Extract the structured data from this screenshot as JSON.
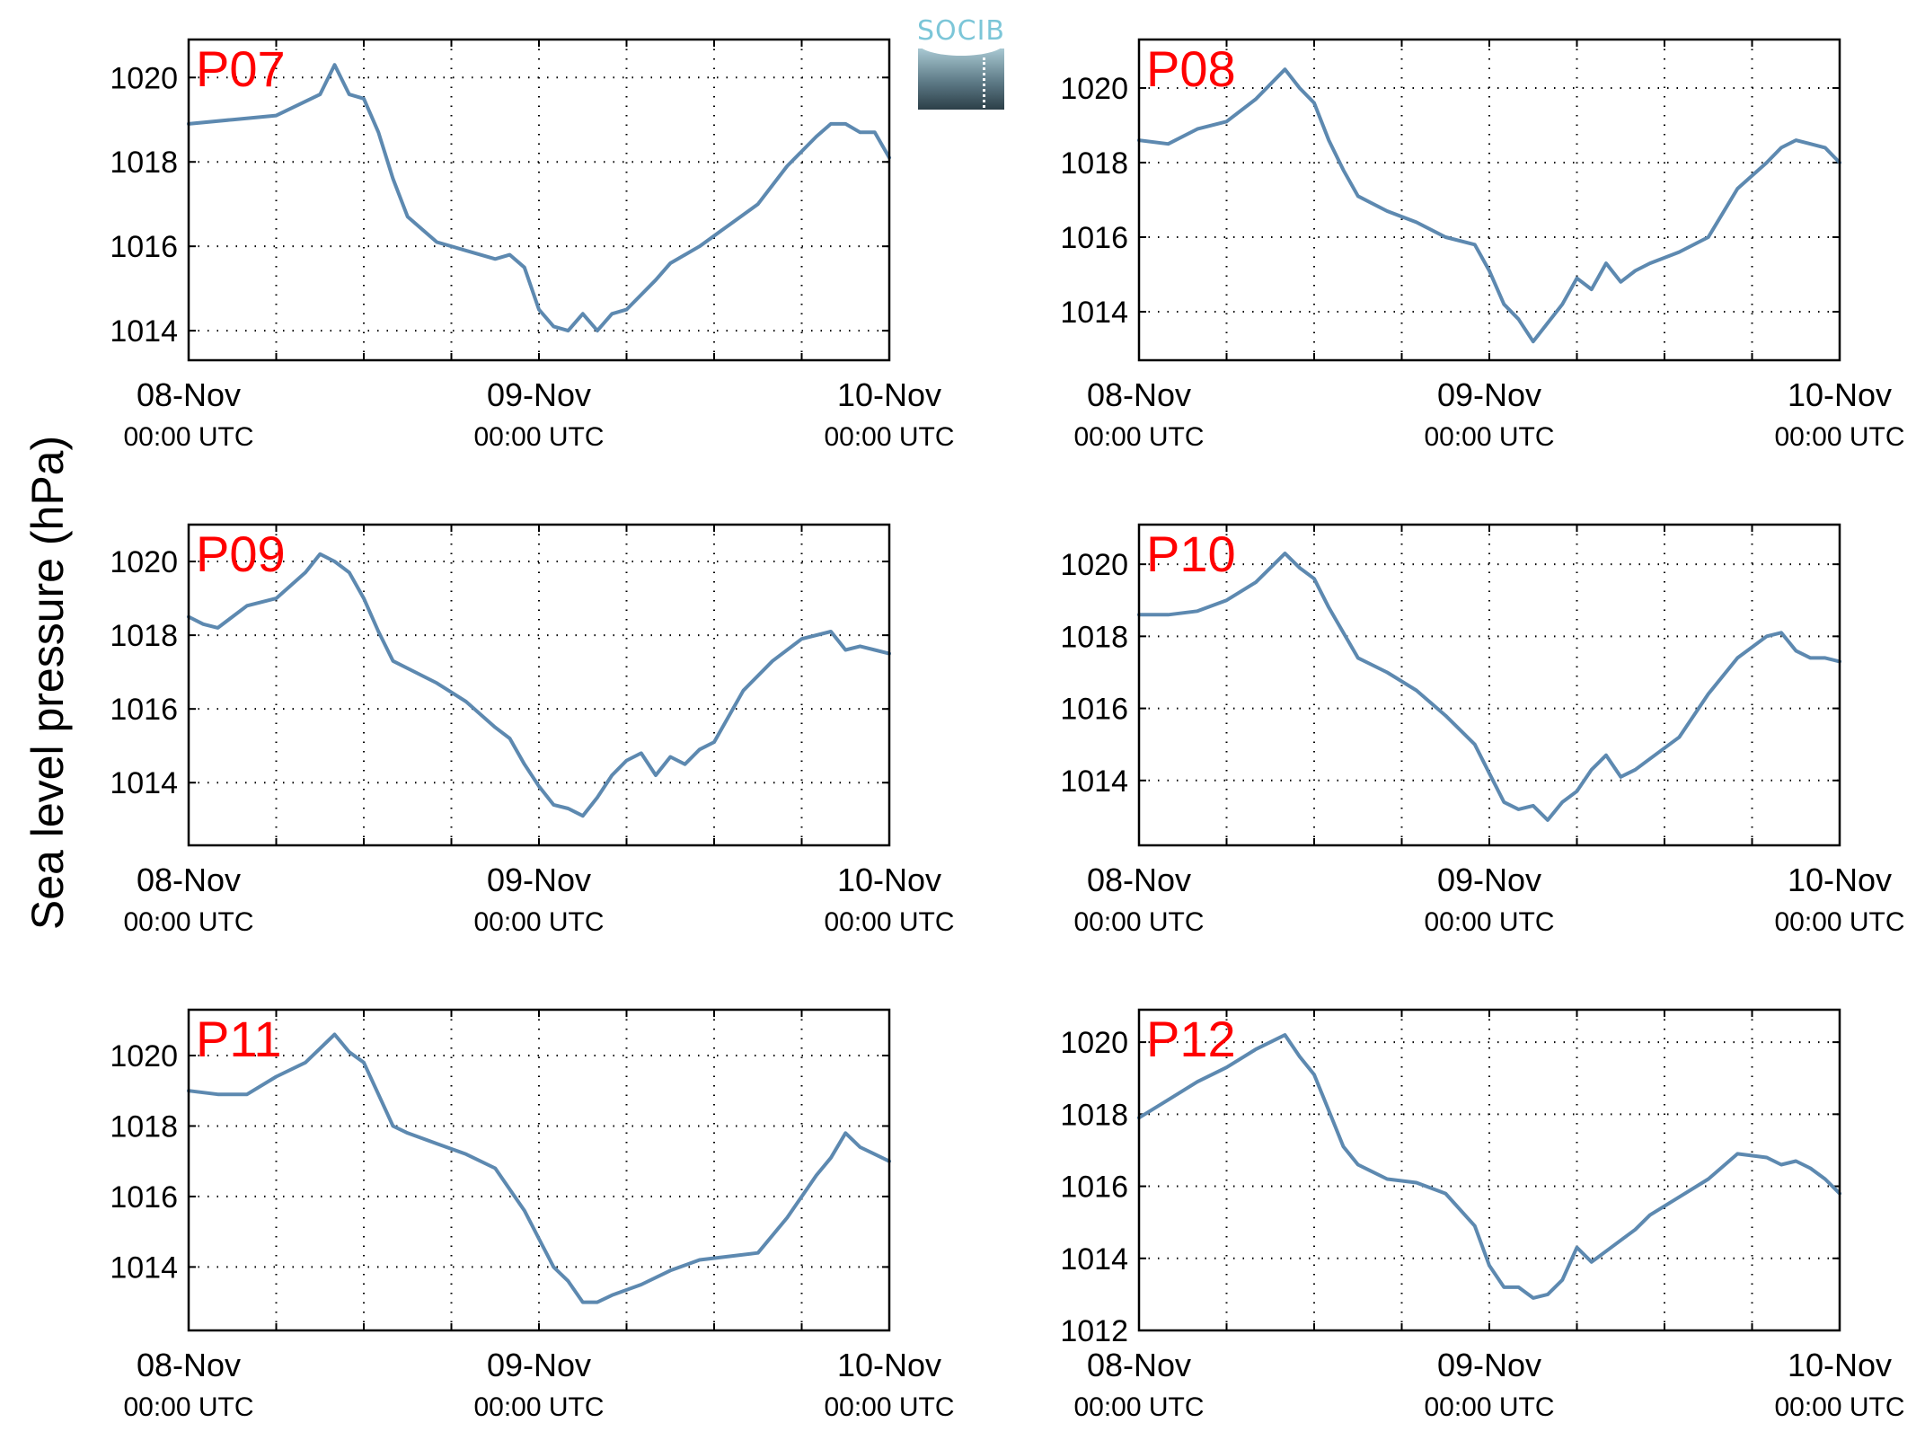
{
  "figure": {
    "ylabel": "Sea level pressure (hPa)",
    "logo_text": "SOCIB"
  },
  "colors": {
    "line": "#5d89b0",
    "panel_label": "#ff0000",
    "axis": "#000000",
    "grid": "#000000"
  },
  "chart_data": [
    {
      "type": "line",
      "title": "P07",
      "xlabel": "",
      "ylabel": "Sea level pressure (hPa)",
      "x_ticks": [
        {
          "date": "08-Nov",
          "time": "00:00 UTC"
        },
        {
          "date": "09-Nov",
          "time": "00:00 UTC"
        },
        {
          "date": "10-Nov",
          "time": "00:00 UTC"
        }
      ],
      "xlim": [
        "08-Nov 00:00",
        "10-Nov 00:00"
      ],
      "ylim": [
        1013.3,
        1020.9
      ],
      "y_ticks": [
        1014,
        1016,
        1018,
        1020
      ],
      "grid": true,
      "series": [
        {
          "x": [
            "08-Nov 00:00",
            "08-Nov 03:00",
            "08-Nov 06:00",
            "08-Nov 09:00",
            "08-Nov 10:00",
            "08-Nov 11:00",
            "08-Nov 12:00",
            "08-Nov 13:00",
            "08-Nov 14:00",
            "08-Nov 15:00",
            "08-Nov 17:00",
            "08-Nov 19:00",
            "08-Nov 21:00",
            "08-Nov 22:00",
            "08-Nov 23:00",
            "09-Nov 00:00",
            "09-Nov 01:00",
            "09-Nov 02:00",
            "09-Nov 03:00",
            "09-Nov 04:00",
            "09-Nov 05:00",
            "09-Nov 06:00",
            "09-Nov 08:00",
            "09-Nov 09:00",
            "09-Nov 10:00",
            "09-Nov 11:00",
            "09-Nov 13:00",
            "09-Nov 15:00",
            "09-Nov 17:00",
            "09-Nov 19:00",
            "09-Nov 20:00",
            "09-Nov 21:00",
            "09-Nov 22:00",
            "09-Nov 23:00",
            "10-Nov 00:00"
          ],
          "y": [
            1018.9,
            1019.0,
            1019.1,
            1019.6,
            1020.3,
            1019.6,
            1019.5,
            1018.7,
            1017.6,
            1016.7,
            1016.1,
            1015.9,
            1015.7,
            1015.8,
            1015.5,
            1014.5,
            1014.1,
            1014.0,
            1014.4,
            1014.0,
            1014.4,
            1014.5,
            1015.2,
            1015.6,
            1015.8,
            1016.0,
            1016.5,
            1017.0,
            1017.9,
            1018.6,
            1018.9,
            1018.9,
            1018.7,
            1018.7,
            1018.1
          ]
        }
      ]
    },
    {
      "type": "line",
      "title": "P08",
      "xlabel": "",
      "ylabel": "Sea level pressure (hPa)",
      "x_ticks": [
        {
          "date": "08-Nov",
          "time": "00:00 UTC"
        },
        {
          "date": "09-Nov",
          "time": "00:00 UTC"
        },
        {
          "date": "10-Nov",
          "time": "00:00 UTC"
        }
      ],
      "xlim": [
        "08-Nov 00:00",
        "10-Nov 00:00"
      ],
      "ylim": [
        1012.7,
        1021.3
      ],
      "y_ticks": [
        1014,
        1016,
        1018,
        1020
      ],
      "grid": true,
      "series": [
        {
          "x": [
            "08-Nov 00:00",
            "08-Nov 02:00",
            "08-Nov 04:00",
            "08-Nov 06:00",
            "08-Nov 08:00",
            "08-Nov 10:00",
            "08-Nov 11:00",
            "08-Nov 12:00",
            "08-Nov 13:00",
            "08-Nov 14:00",
            "08-Nov 15:00",
            "08-Nov 17:00",
            "08-Nov 19:00",
            "08-Nov 21:00",
            "08-Nov 23:00",
            "09-Nov 00:00",
            "09-Nov 01:00",
            "09-Nov 02:00",
            "09-Nov 03:00",
            "09-Nov 04:00",
            "09-Nov 05:00",
            "09-Nov 06:00",
            "09-Nov 07:00",
            "09-Nov 08:00",
            "09-Nov 09:00",
            "09-Nov 10:00",
            "09-Nov 11:00",
            "09-Nov 13:00",
            "09-Nov 15:00",
            "09-Nov 17:00",
            "09-Nov 19:00",
            "09-Nov 20:00",
            "09-Nov 21:00",
            "09-Nov 22:00",
            "09-Nov 23:00",
            "10-Nov 00:00"
          ],
          "y": [
            1018.6,
            1018.5,
            1018.9,
            1019.1,
            1019.7,
            1020.5,
            1020.0,
            1019.6,
            1018.6,
            1017.8,
            1017.1,
            1016.7,
            1016.4,
            1016.0,
            1015.8,
            1015.1,
            1014.2,
            1013.8,
            1013.2,
            1013.7,
            1014.2,
            1014.9,
            1014.6,
            1015.3,
            1014.8,
            1015.1,
            1015.3,
            1015.6,
            1016.0,
            1017.3,
            1018.0,
            1018.4,
            1018.6,
            1018.5,
            1018.4,
            1018.0
          ]
        }
      ]
    },
    {
      "type": "line",
      "title": "P09",
      "xlabel": "",
      "ylabel": "Sea level pressure (hPa)",
      "x_ticks": [
        {
          "date": "08-Nov",
          "time": "00:00 UTC"
        },
        {
          "date": "09-Nov",
          "time": "00:00 UTC"
        },
        {
          "date": "10-Nov",
          "time": "00:00 UTC"
        }
      ],
      "xlim": [
        "08-Nov 00:00",
        "10-Nov 00:00"
      ],
      "ylim": [
        1012.3,
        1021.0
      ],
      "y_ticks": [
        1014,
        1016,
        1018,
        1020
      ],
      "grid": true,
      "series": [
        {
          "x": [
            "08-Nov 00:00",
            "08-Nov 01:00",
            "08-Nov 02:00",
            "08-Nov 04:00",
            "08-Nov 06:00",
            "08-Nov 08:00",
            "08-Nov 09:00",
            "08-Nov 10:00",
            "08-Nov 11:00",
            "08-Nov 12:00",
            "08-Nov 13:00",
            "08-Nov 14:00",
            "08-Nov 15:00",
            "08-Nov 17:00",
            "08-Nov 19:00",
            "08-Nov 21:00",
            "08-Nov 22:00",
            "08-Nov 23:00",
            "09-Nov 00:00",
            "09-Nov 01:00",
            "09-Nov 02:00",
            "09-Nov 03:00",
            "09-Nov 04:00",
            "09-Nov 05:00",
            "09-Nov 06:00",
            "09-Nov 07:00",
            "09-Nov 08:00",
            "09-Nov 09:00",
            "09-Nov 10:00",
            "09-Nov 11:00",
            "09-Nov 12:00",
            "09-Nov 14:00",
            "09-Nov 16:00",
            "09-Nov 18:00",
            "09-Nov 20:00",
            "09-Nov 21:00",
            "09-Nov 22:00",
            "09-Nov 23:00",
            "10-Nov 00:00"
          ],
          "y": [
            1018.5,
            1018.3,
            1018.2,
            1018.8,
            1019.0,
            1019.7,
            1020.2,
            1020.0,
            1019.7,
            1019.0,
            1018.1,
            1017.3,
            1017.1,
            1016.7,
            1016.2,
            1015.5,
            1015.2,
            1014.5,
            1013.9,
            1013.4,
            1013.3,
            1013.1,
            1013.6,
            1014.2,
            1014.6,
            1014.8,
            1014.2,
            1014.7,
            1014.5,
            1014.9,
            1015.1,
            1016.5,
            1017.3,
            1017.9,
            1018.1,
            1017.6,
            1017.7,
            1017.6,
            1017.5
          ]
        }
      ]
    },
    {
      "type": "line",
      "title": "P10",
      "xlabel": "",
      "ylabel": "Sea level pressure (hPa)",
      "x_ticks": [
        {
          "date": "08-Nov",
          "time": "00:00 UTC"
        },
        {
          "date": "09-Nov",
          "time": "00:00 UTC"
        },
        {
          "date": "10-Nov",
          "time": "00:00 UTC"
        }
      ],
      "xlim": [
        "08-Nov 00:00",
        "10-Nov 00:00"
      ],
      "ylim": [
        1012.2,
        1021.1
      ],
      "y_ticks": [
        1014,
        1016,
        1018,
        1020
      ],
      "grid": true,
      "series": [
        {
          "x": [
            "08-Nov 00:00",
            "08-Nov 02:00",
            "08-Nov 04:00",
            "08-Nov 06:00",
            "08-Nov 08:00",
            "08-Nov 10:00",
            "08-Nov 11:00",
            "08-Nov 12:00",
            "08-Nov 13:00",
            "08-Nov 14:00",
            "08-Nov 15:00",
            "08-Nov 17:00",
            "08-Nov 19:00",
            "08-Nov 21:00",
            "08-Nov 23:00",
            "09-Nov 00:00",
            "09-Nov 01:00",
            "09-Nov 02:00",
            "09-Nov 03:00",
            "09-Nov 04:00",
            "09-Nov 05:00",
            "09-Nov 06:00",
            "09-Nov 07:00",
            "09-Nov 08:00",
            "09-Nov 09:00",
            "09-Nov 10:00",
            "09-Nov 11:00",
            "09-Nov 13:00",
            "09-Nov 15:00",
            "09-Nov 17:00",
            "09-Nov 19:00",
            "09-Nov 20:00",
            "09-Nov 21:00",
            "09-Nov 22:00",
            "09-Nov 23:00",
            "10-Nov 00:00"
          ],
          "y": [
            1018.6,
            1018.6,
            1018.7,
            1019.0,
            1019.5,
            1020.3,
            1019.9,
            1019.6,
            1018.8,
            1018.1,
            1017.4,
            1017.0,
            1016.5,
            1015.8,
            1015.0,
            1014.2,
            1013.4,
            1013.2,
            1013.3,
            1012.9,
            1013.4,
            1013.7,
            1014.3,
            1014.7,
            1014.1,
            1014.3,
            1014.6,
            1015.2,
            1016.4,
            1017.4,
            1018.0,
            1018.1,
            1017.6,
            1017.4,
            1017.4,
            1017.3
          ]
        }
      ]
    },
    {
      "type": "line",
      "title": "P11",
      "xlabel": "",
      "ylabel": "Sea level pressure (hPa)",
      "x_ticks": [
        {
          "date": "08-Nov",
          "time": "00:00 UTC"
        },
        {
          "date": "09-Nov",
          "time": "00:00 UTC"
        },
        {
          "date": "10-Nov",
          "time": "00:00 UTC"
        }
      ],
      "xlim": [
        "08-Nov 00:00",
        "10-Nov 00:00"
      ],
      "ylim": [
        1012.2,
        1021.3
      ],
      "y_ticks": [
        1014,
        1016,
        1018,
        1020
      ],
      "grid": true,
      "series": [
        {
          "x": [
            "08-Nov 00:00",
            "08-Nov 02:00",
            "08-Nov 04:00",
            "08-Nov 06:00",
            "08-Nov 08:00",
            "08-Nov 10:00",
            "08-Nov 11:00",
            "08-Nov 12:00",
            "08-Nov 13:00",
            "08-Nov 14:00",
            "08-Nov 15:00",
            "08-Nov 17:00",
            "08-Nov 19:00",
            "08-Nov 21:00",
            "08-Nov 23:00",
            "09-Nov 00:00",
            "09-Nov 01:00",
            "09-Nov 02:00",
            "09-Nov 03:00",
            "09-Nov 04:00",
            "09-Nov 05:00",
            "09-Nov 07:00",
            "09-Nov 09:00",
            "09-Nov 11:00",
            "09-Nov 13:00",
            "09-Nov 15:00",
            "09-Nov 17:00",
            "09-Nov 19:00",
            "09-Nov 20:00",
            "09-Nov 21:00",
            "09-Nov 22:00",
            "09-Nov 23:00",
            "10-Nov 00:00"
          ],
          "y": [
            1019.0,
            1018.9,
            1018.9,
            1019.4,
            1019.8,
            1020.6,
            1020.1,
            1019.8,
            1018.9,
            1018.0,
            1017.8,
            1017.5,
            1017.2,
            1016.8,
            1015.6,
            1014.8,
            1014.0,
            1013.6,
            1013.0,
            1013.0,
            1013.2,
            1013.5,
            1013.9,
            1014.2,
            1014.3,
            1014.4,
            1015.4,
            1016.6,
            1017.1,
            1017.8,
            1017.4,
            1017.2,
            1017.0
          ]
        }
      ]
    },
    {
      "type": "line",
      "title": "P12",
      "xlabel": "",
      "ylabel": "Sea level pressure (hPa)",
      "x_ticks": [
        {
          "date": "08-Nov",
          "time": "00:00 UTC"
        },
        {
          "date": "09-Nov",
          "time": "00:00 UTC"
        },
        {
          "date": "10-Nov",
          "time": "00:00 UTC"
        }
      ],
      "xlim": [
        "08-Nov 00:00",
        "10-Nov 00:00"
      ],
      "ylim": [
        1012.0,
        1020.9
      ],
      "y_ticks": [
        1012,
        1014,
        1016,
        1018,
        1020
      ],
      "grid": true,
      "series": [
        {
          "x": [
            "08-Nov 00:00",
            "08-Nov 02:00",
            "08-Nov 04:00",
            "08-Nov 06:00",
            "08-Nov 08:00",
            "08-Nov 10:00",
            "08-Nov 11:00",
            "08-Nov 12:00",
            "08-Nov 13:00",
            "08-Nov 14:00",
            "08-Nov 15:00",
            "08-Nov 17:00",
            "08-Nov 19:00",
            "08-Nov 21:00",
            "08-Nov 23:00",
            "09-Nov 00:00",
            "09-Nov 01:00",
            "09-Nov 02:00",
            "09-Nov 03:00",
            "09-Nov 04:00",
            "09-Nov 05:00",
            "09-Nov 06:00",
            "09-Nov 07:00",
            "09-Nov 08:00",
            "09-Nov 09:00",
            "09-Nov 10:00",
            "09-Nov 11:00",
            "09-Nov 13:00",
            "09-Nov 15:00",
            "09-Nov 17:00",
            "09-Nov 19:00",
            "09-Nov 20:00",
            "09-Nov 21:00",
            "09-Nov 22:00",
            "09-Nov 23:00",
            "10-Nov 00:00"
          ],
          "y": [
            1017.9,
            1018.4,
            1018.9,
            1019.3,
            1019.8,
            1020.2,
            1019.6,
            1019.1,
            1018.1,
            1017.1,
            1016.6,
            1016.2,
            1016.1,
            1015.8,
            1014.9,
            1013.8,
            1013.2,
            1013.2,
            1012.9,
            1013.0,
            1013.4,
            1014.3,
            1013.9,
            1014.2,
            1014.5,
            1014.8,
            1015.2,
            1015.7,
            1016.2,
            1016.9,
            1016.8,
            1016.6,
            1016.7,
            1016.5,
            1016.2,
            1015.8
          ]
        }
      ]
    }
  ]
}
